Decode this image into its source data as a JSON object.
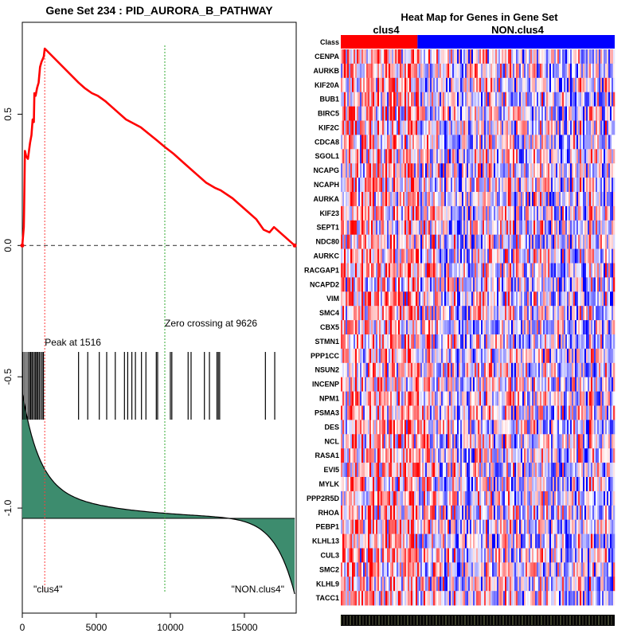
{
  "chart_data": [
    {
      "type": "line",
      "title": "Gene Set  234 : PID_AURORA_B_PATHWAY",
      "xlabel": "",
      "ylabel": "",
      "xlim": [
        0,
        18500
      ],
      "ylim": [
        -1.4,
        0.85
      ],
      "x_ticks": [
        0,
        5000,
        10000,
        15000
      ],
      "x_tick_labels": [
        "0",
        "5000",
        "10000",
        "15000"
      ],
      "y_ticks": [
        -1.0,
        -0.5,
        0.0,
        0.5
      ],
      "y_tick_labels": [
        "-1.0",
        "-0.5",
        "0.0",
        "0.5"
      ],
      "series": [
        {
          "name": "running enrichment score",
          "color": "#ff0000",
          "x": [
            0,
            100,
            120,
            180,
            260,
            380,
            520,
            620,
            700,
            780,
            820,
            900,
            1000,
            1100,
            1200,
            1300,
            1380,
            1450,
            1516,
            3800,
            4200,
            4700,
            5100,
            5600,
            6200,
            7000,
            8000,
            9100,
            9626,
            10200,
            11000,
            11800,
            12400,
            13000,
            13400,
            14200,
            15000,
            15800,
            16300,
            16700,
            17000,
            18400
          ],
          "values": [
            0.0,
            0.07,
            0.12,
            0.36,
            0.34,
            0.33,
            0.39,
            0.42,
            0.48,
            0.47,
            0.58,
            0.57,
            0.6,
            0.62,
            0.68,
            0.7,
            0.71,
            0.72,
            0.75,
            0.62,
            0.6,
            0.58,
            0.57,
            0.55,
            0.52,
            0.48,
            0.45,
            0.4,
            0.375,
            0.35,
            0.31,
            0.27,
            0.24,
            0.22,
            0.21,
            0.18,
            0.14,
            0.1,
            0.06,
            0.05,
            0.07,
            0.0
          ]
        }
      ],
      "zero_line": 0.0,
      "peak": {
        "x": 1516,
        "label": "Peak at 1516"
      },
      "zero_crossing": {
        "x": 9626,
        "label": "Zero crossing at 9626"
      },
      "hit_positions": [
        20,
        120,
        250,
        380,
        480,
        560,
        640,
        720,
        820,
        900,
        980,
        1060,
        1150,
        1250,
        1350,
        1430,
        3800,
        4420,
        5200,
        5700,
        6280,
        6900,
        7120,
        7400,
        7640,
        8050,
        8350,
        9050,
        9140,
        10000,
        10100,
        11200,
        11400,
        12300,
        12640,
        13150,
        13240,
        13330,
        16420,
        17050
      ],
      "bottom_labels": {
        "left": "\"clus4\"",
        "right": "\"NON.clus4\""
      },
      "colors": {
        "curve": "#ff0000",
        "peak_line": "#ff3b3b",
        "zero_line": "#33aa33",
        "fill": "#3d8c6e",
        "baseline": "#444444"
      }
    },
    {
      "type": "heatmap",
      "title": "Heat Map for Genes in Gene Set",
      "class_row_label": "Class",
      "classes": [
        {
          "name": "clus4",
          "color": "#ff0000",
          "fraction": 0.28
        },
        {
          "name": "NON.clus4",
          "color": "#0000ff",
          "fraction": 0.72
        }
      ],
      "genes": [
        "CENPA",
        "AURKB",
        "KIF20A",
        "BUB1",
        "BIRC5",
        "KIF2C",
        "CDCA8",
        "SGOL1",
        "NCAPG",
        "NCAPH",
        "AURKA",
        "KIF23",
        "SEPT1",
        "NDC80",
        "AURKC",
        "RACGAP1",
        "NCAPD2",
        "VIM",
        "SMC4",
        "CBX5",
        "STMN1",
        "PPP1CC",
        "NSUN2",
        "INCENP",
        "NPM1",
        "PSMA3",
        "DES",
        "NCL",
        "RASA1",
        "EVI5",
        "MYLK",
        "PPP2R5D",
        "RHOA",
        "PEBP1",
        "KLHL13",
        "CUL3",
        "SMC2",
        "KLHL9",
        "TACC1"
      ],
      "color_scale": {
        "low": "#0000ff",
        "mid": "#ffffff",
        "high": "#ff0000"
      }
    }
  ]
}
